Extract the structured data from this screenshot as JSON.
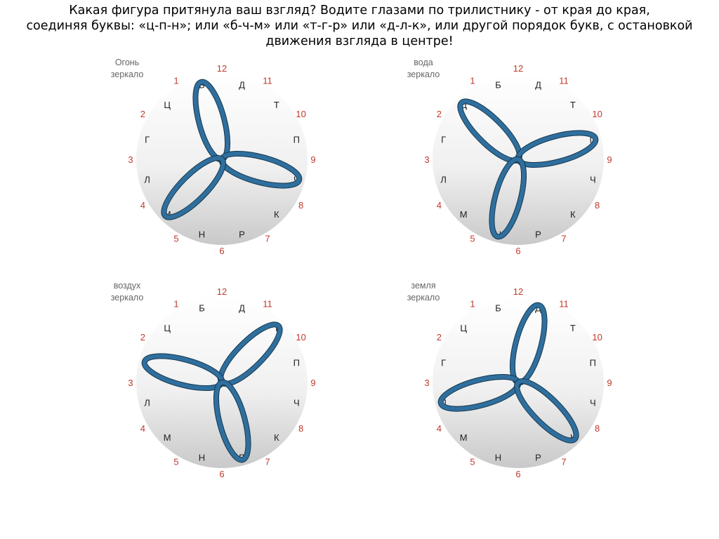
{
  "title": {
    "line1": "Какая фигура притянула ваш взгляд? Водите глазами по трилистнику - от края до края,",
    "line2": "соединяя буквы: «ц-п-н»;  или «б-ч-м» или «т-г-р» или «д-л-к», или другой порядок букв, с остановкой",
    "line3": "движения взгляда в центре!"
  },
  "dials": [
    {
      "id": "fire",
      "label1": "Огонь",
      "label2": "зеркало",
      "petals": [
        "Б",
        "Ч",
        "М"
      ]
    },
    {
      "id": "water",
      "label1": "вода",
      "label2": "зеркало",
      "petals": [
        "Ц",
        "П",
        "Н"
      ]
    },
    {
      "id": "air",
      "label1": "воздух",
      "label2": "зеркало",
      "petals": [
        "Т",
        "Г",
        "Р"
      ]
    },
    {
      "id": "earth",
      "label1": "земля",
      "label2": "зеркало",
      "petals": [
        "Д",
        "Л",
        "К"
      ]
    }
  ],
  "numbers": [
    "12",
    "11",
    "10",
    "9",
    "8",
    "7",
    "6",
    "5",
    "4",
    "3",
    "2",
    "1"
  ],
  "letters": [
    "Д",
    "Т",
    "П",
    "Ч",
    "К",
    "Р",
    "Н",
    "М",
    "Л",
    "Г",
    "Ц",
    "Б"
  ],
  "colors": {
    "petal": "#2f6f9e",
    "petal_edge": "#16384f",
    "numbers": "#c0392b",
    "letters": "#222222"
  }
}
